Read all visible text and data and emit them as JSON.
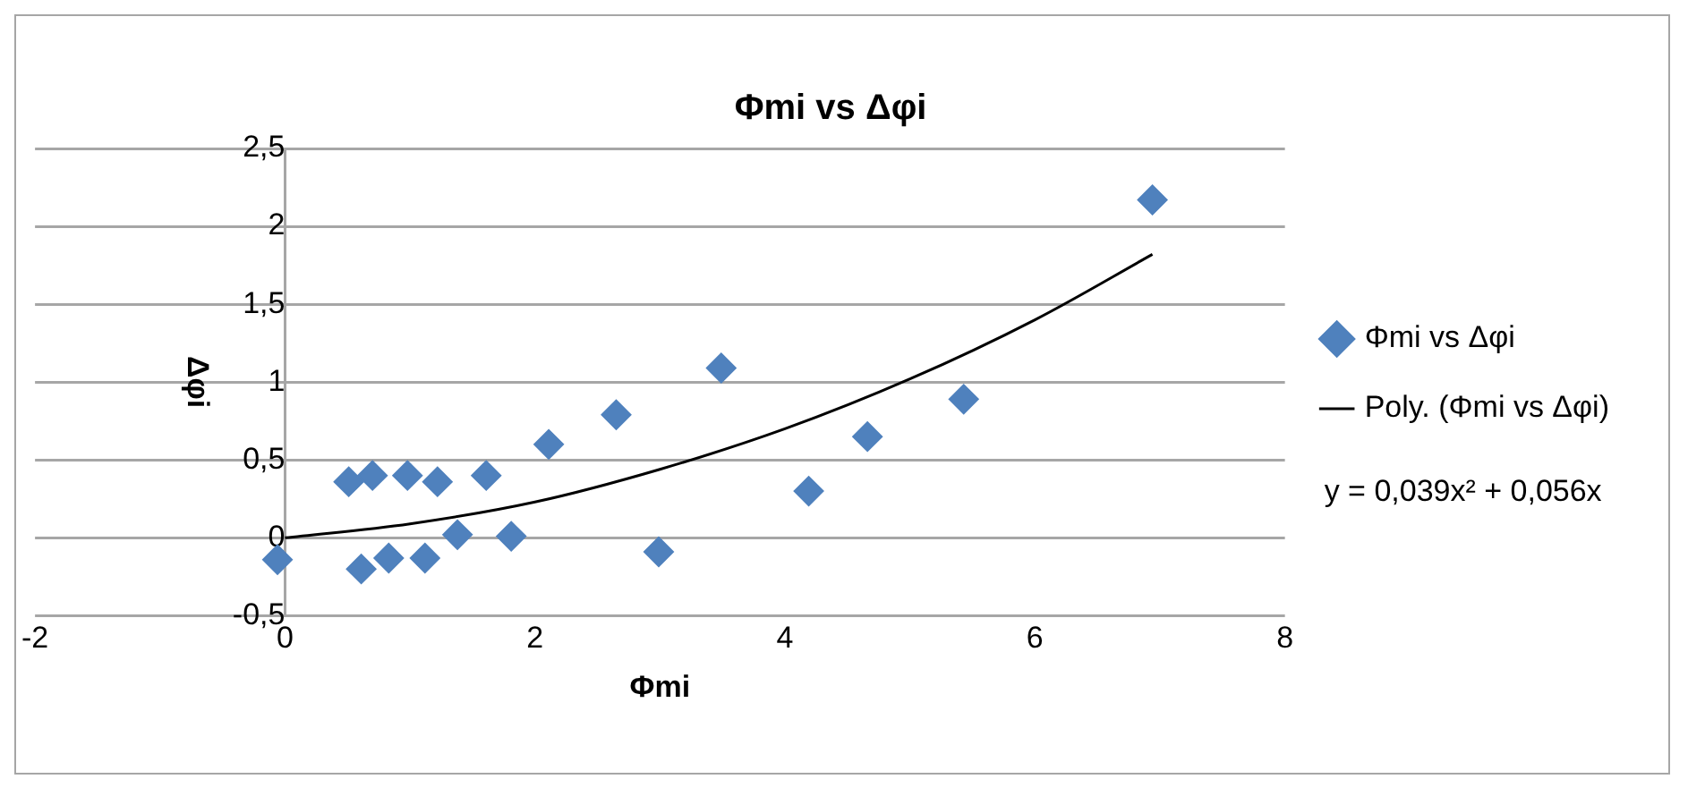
{
  "chart_data": {
    "type": "scatter",
    "title": "Φmi vs Δφi",
    "xlabel": "Φmi",
    "ylabel": "Δφi",
    "xlim": [
      -2,
      8
    ],
    "xticks": [
      -2,
      0,
      2,
      4,
      6,
      8
    ],
    "ylim": [
      -0.5,
      2.5
    ],
    "yticks": [
      {
        "value": -0.5,
        "label": "-0,5"
      },
      0,
      {
        "value": 0.5,
        "label": "0,5"
      },
      1,
      {
        "value": 1.5,
        "label": "1,5"
      },
      2,
      {
        "value": 2.5,
        "label": "2,5"
      }
    ],
    "grid": "y",
    "legend": "right",
    "marker": "diamond",
    "series": [
      {
        "name": "Φmi vs Δφi",
        "type": "scatter",
        "color": "#4f81bd",
        "x": [
          -0.06,
          0.51,
          0.7,
          0.98,
          1.22,
          1.61,
          0.61,
          0.83,
          1.12,
          1.38,
          1.81,
          2.11,
          2.65,
          2.99,
          3.49,
          4.19,
          4.66,
          5.43,
          6.94
        ],
        "values": [
          -0.14,
          0.36,
          0.4,
          0.4,
          0.36,
          0.4,
          -0.2,
          -0.13,
          -0.13,
          0.02,
          0.01,
          0.6,
          0.79,
          -0.09,
          1.09,
          0.3,
          0.65,
          0.89,
          2.17
        ]
      },
      {
        "name": "Poly. (Φmi vs Δφi)",
        "type": "line",
        "color": "#000000",
        "marker": "none",
        "x": [
          0,
          1,
          2,
          3,
          4,
          5,
          6,
          6.94
        ],
        "values": [
          0,
          0.09,
          0.23,
          0.44,
          0.7,
          1.02,
          1.4,
          1.82
        ]
      }
    ],
    "annotations": [
      "y = 0,039x² + 0,056x"
    ]
  }
}
